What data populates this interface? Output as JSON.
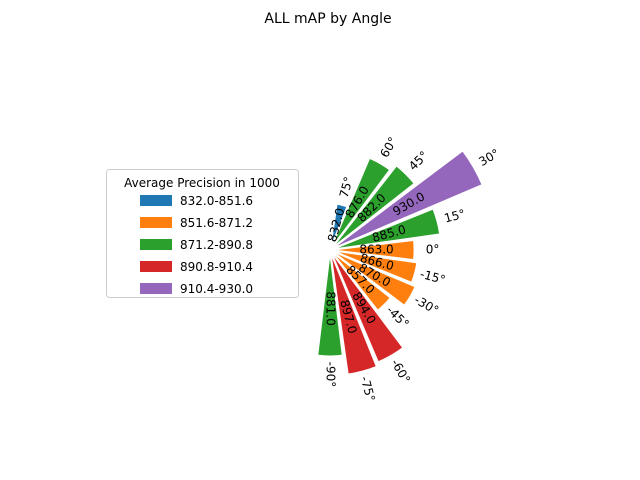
{
  "chart_data": {
    "type": "bar",
    "subtype": "polar",
    "title": "ALL mAP by Angle",
    "xlabel": "",
    "ylabel": "",
    "categories": [
      "-90°",
      "-75°",
      "-60°",
      "-45°",
      "-30°",
      "-15°",
      "0°",
      "15°",
      "30°",
      "45°",
      "60°",
      "75°"
    ],
    "angles": [
      -90,
      -75,
      -60,
      -45,
      -30,
      -15,
      0,
      15,
      30,
      45,
      60,
      75
    ],
    "values": [
      881.0,
      897.0,
      894.0,
      857.0,
      870.0,
      866.0,
      863.0,
      885.0,
      930.0,
      882.0,
      876.0,
      832.0
    ],
    "value_labels": [
      "881.0",
      "897.0",
      "894.0",
      "857.0",
      "870.0",
      "866.0",
      "863.0",
      "885.0",
      "930.0",
      "882.0",
      "876.0",
      "832.0"
    ],
    "radial_range": [
      800,
      930
    ],
    "grid": false,
    "legend": {
      "title": "Average Precision in 1000",
      "placement": "center-left",
      "entries": [
        {
          "label": "832.0-851.6",
          "color": "#1f77b4",
          "min": 832.0,
          "max": 851.6
        },
        {
          "label": "851.6-871.2",
          "color": "#ff7f0e",
          "min": 851.6,
          "max": 871.2
        },
        {
          "label": "871.2-890.8",
          "color": "#2ca02c",
          "min": 871.2,
          "max": 890.8
        },
        {
          "label": "890.8-910.4",
          "color": "#d62728",
          "min": 890.8,
          "max": 910.4
        },
        {
          "label": "910.4-930.0",
          "color": "#9467bd",
          "min": 910.4,
          "max": 930.0
        }
      ]
    }
  }
}
